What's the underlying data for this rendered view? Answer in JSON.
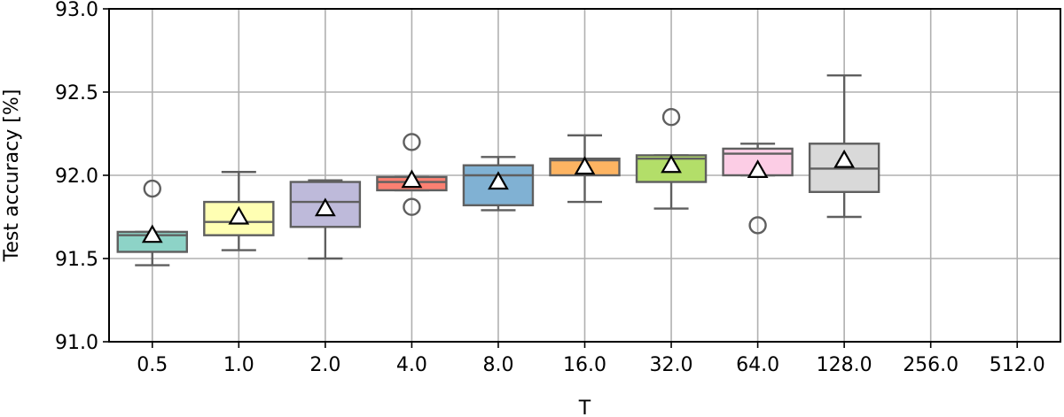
{
  "chart_data": {
    "type": "box",
    "xlabel": "T",
    "ylabel": "Test accuracy [%]",
    "ylim": [
      91.0,
      93.0
    ],
    "yticks": [
      "91.0",
      "91.5",
      "92.0",
      "92.5",
      "93.0"
    ],
    "grid": true,
    "categories": [
      "0.5",
      "1.0",
      "2.0",
      "4.0",
      "8.0",
      "16.0",
      "32.0",
      "64.0",
      "128.0",
      "256.0",
      "512.0"
    ],
    "boxes": [
      {
        "category": "0.5",
        "color": "#8dd3c7",
        "min": 91.46,
        "q1": 91.54,
        "median": 91.64,
        "q3": 91.66,
        "max": 91.66,
        "mean": 91.64,
        "outliers": [
          91.92
        ]
      },
      {
        "category": "1.0",
        "color": "#ffffb3",
        "min": 91.55,
        "q1": 91.64,
        "median": 91.72,
        "q3": 91.84,
        "max": 92.02,
        "mean": 91.75,
        "outliers": []
      },
      {
        "category": "2.0",
        "color": "#bebada",
        "min": 91.5,
        "q1": 91.69,
        "median": 91.84,
        "q3": 91.96,
        "max": 91.97,
        "mean": 91.8,
        "outliers": []
      },
      {
        "category": "4.0",
        "color": "#fb8072",
        "min": 91.91,
        "q1": 91.91,
        "median": 91.96,
        "q3": 91.99,
        "max": 91.99,
        "mean": 91.97,
        "outliers": [
          92.2,
          91.81
        ]
      },
      {
        "category": "8.0",
        "color": "#80b1d3",
        "min": 91.79,
        "q1": 91.82,
        "median": 92.0,
        "q3": 92.06,
        "max": 92.11,
        "mean": 91.96,
        "outliers": []
      },
      {
        "category": "16.0",
        "color": "#fdb462",
        "min": 91.84,
        "q1": 92.0,
        "median": 92.09,
        "q3": 92.1,
        "max": 92.24,
        "mean": 92.05,
        "outliers": []
      },
      {
        "category": "32.0",
        "color": "#b3de69",
        "min": 91.8,
        "q1": 91.96,
        "median": 92.1,
        "q3": 92.12,
        "max": 92.12,
        "mean": 92.06,
        "outliers": [
          92.35
        ]
      },
      {
        "category": "64.0",
        "color": "#fccde5",
        "min": 92.0,
        "q1": 92.0,
        "median": 92.13,
        "q3": 92.16,
        "max": 92.19,
        "mean": 92.03,
        "outliers": [
          91.7
        ]
      },
      {
        "category": "128.0",
        "color": "#d9d9d9",
        "min": 91.75,
        "q1": 91.9,
        "median": 92.04,
        "q3": 92.19,
        "max": 92.6,
        "mean": 92.09,
        "outliers": []
      }
    ]
  }
}
